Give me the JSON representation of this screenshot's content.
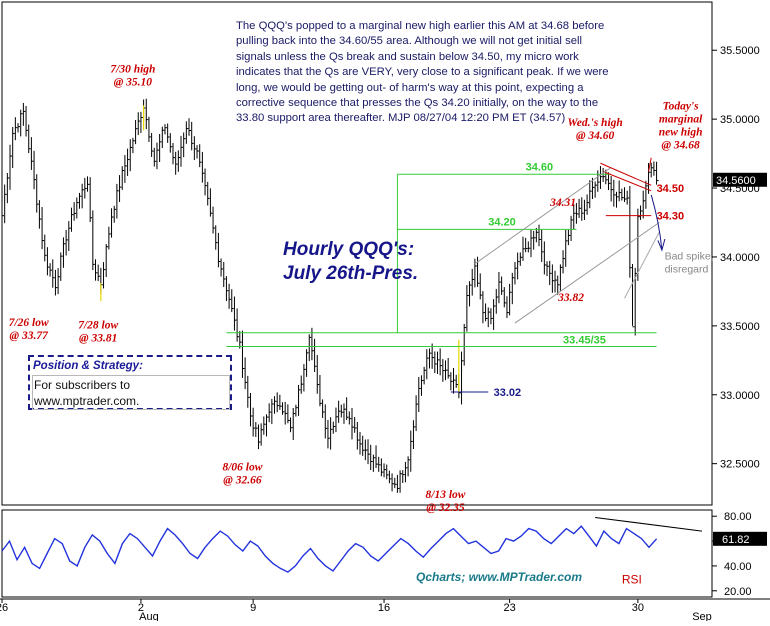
{
  "commentary": "The QQQ's popped to a marginal new high earlier this AM at 34.68 before pulling back into the 34.60/55 area. Although we will not get initial sell signals unless the Qs break and sustain below 34.50, my micro work indicates that the Qs are VERY, very close to a significant peak. If we were long, we would be getting out- of harm's way at this point, expecting a corrective sequence that presses the Qs 34.20 initially, on the way to the 33.80 support area thereafter. MJP 08/27/04  12:20 PM ET (34.57)",
  "title_line1": "Hourly QQQ's:",
  "title_line2": "July 26th-Pres.",
  "strategy": {
    "heading": "Position & Strategy:",
    "line1": "For subscribers to",
    "line2": "www.mptrader.com."
  },
  "credit": "Qcharts; www.MPTrader.com",
  "colors": {
    "bars": "#000000",
    "annotation_red": "#cc0000",
    "level_green": "#33cc33",
    "navy": "#1a1a88",
    "rsi_line": "#2233dd",
    "current_price_box": "#000000",
    "channel_gray": "#999999"
  },
  "chart_data": {
    "type": "bar",
    "price_panel": {
      "ylim": [
        32.2,
        35.85
      ],
      "y_ticks": [
        32.5,
        33.0,
        33.5,
        34.0,
        34.5,
        35.0,
        35.5
      ],
      "y_tick_labels": [
        "32.5000",
        "33.0000",
        "33.5000",
        "34.0000",
        "34.5000",
        "35.0000",
        "35.5000"
      ],
      "current_price": 34.56,
      "current_price_label": "34.5600",
      "anchors": [
        [
          0,
          34.3
        ],
        [
          4,
          34.9
        ],
        [
          8,
          35.05
        ],
        [
          12,
          34.55
        ],
        [
          16,
          34.0
        ],
        [
          20,
          33.8
        ],
        [
          24,
          34.15
        ],
        [
          28,
          34.4
        ],
        [
          32,
          34.55
        ],
        [
          34,
          33.95
        ],
        [
          37,
          33.81
        ],
        [
          41,
          34.3
        ],
        [
          45,
          34.6
        ],
        [
          49,
          34.85
        ],
        [
          53,
          35.1
        ],
        [
          57,
          34.7
        ],
        [
          61,
          34.95
        ],
        [
          65,
          34.65
        ],
        [
          69,
          34.95
        ],
        [
          73,
          34.75
        ],
        [
          77,
          34.4
        ],
        [
          81,
          34.0
        ],
        [
          85,
          33.7
        ],
        [
          89,
          33.35
        ],
        [
          93,
          32.85
        ],
        [
          96,
          32.66
        ],
        [
          100,
          32.9
        ],
        [
          104,
          32.95
        ],
        [
          108,
          32.75
        ],
        [
          112,
          33.1
        ],
        [
          115,
          33.45
        ],
        [
          118,
          33.05
        ],
        [
          122,
          32.7
        ],
        [
          126,
          32.9
        ],
        [
          130,
          32.85
        ],
        [
          134,
          32.65
        ],
        [
          138,
          32.55
        ],
        [
          142,
          32.45
        ],
        [
          145,
          32.38
        ],
        [
          148,
          32.35
        ],
        [
          152,
          32.55
        ],
        [
          156,
          33.05
        ],
        [
          160,
          33.3
        ],
        [
          164,
          33.2
        ],
        [
          168,
          33.1
        ],
        [
          171,
          33.02
        ],
        [
          174,
          33.7
        ],
        [
          177,
          33.9
        ],
        [
          180,
          33.6
        ],
        [
          183,
          33.55
        ],
        [
          186,
          33.8
        ],
        [
          189,
          33.6
        ],
        [
          192,
          33.95
        ],
        [
          196,
          34.05
        ],
        [
          200,
          34.2
        ],
        [
          204,
          33.9
        ],
        [
          208,
          33.82
        ],
        [
          211,
          34.1
        ],
        [
          214,
          34.31
        ],
        [
          218,
          34.35
        ],
        [
          222,
          34.55
        ],
        [
          225,
          34.6
        ],
        [
          228,
          34.5
        ],
        [
          231,
          34.45
        ],
        [
          234,
          34.4
        ],
        [
          236,
          33.5
        ],
        [
          238,
          34.3
        ],
        [
          241,
          34.5
        ],
        [
          243,
          34.68
        ],
        [
          245,
          34.57
        ]
      ]
    },
    "rsi_panel": {
      "series": "RSI",
      "ylim": [
        15,
        85
      ],
      "y_ticks": [
        20.0,
        40.0,
        60.0,
        80.0
      ],
      "y_tick_labels": [
        "20.00",
        "40.00",
        "60.00",
        "80.00"
      ],
      "current_value": 61.82,
      "current_value_label": "61.82",
      "label": "RSI",
      "values": [
        52,
        60,
        45,
        55,
        42,
        38,
        50,
        62,
        58,
        44,
        40,
        55,
        65,
        60,
        50,
        42,
        58,
        66,
        62,
        55,
        48,
        60,
        70,
        65,
        58,
        50,
        46,
        55,
        62,
        68,
        64,
        57,
        52,
        60,
        56,
        48,
        42,
        38,
        35,
        40,
        48,
        54,
        46,
        40,
        36,
        44,
        52,
        58,
        55,
        48,
        44,
        50,
        56,
        62,
        58,
        52,
        47,
        54,
        60,
        66,
        70,
        64,
        58,
        60,
        55,
        50,
        52,
        62,
        60,
        64,
        70,
        68,
        62,
        58,
        64,
        70,
        66,
        72,
        64,
        56,
        68,
        62,
        58,
        70,
        66,
        62,
        55,
        61.82
      ]
    },
    "x_tick_labels": [
      {
        "index": 0,
        "label": "26"
      },
      {
        "index": 52,
        "label": "2"
      },
      {
        "index": 94,
        "label": "9"
      },
      {
        "index": 143,
        "label": "16"
      },
      {
        "index": 190,
        "label": "23"
      },
      {
        "index": 238,
        "label": "30"
      }
    ],
    "x_month_labels": [
      {
        "index": 52,
        "label": "Aug"
      },
      {
        "index": 262,
        "label": "Sep"
      }
    ],
    "x_max_index": 265,
    "levels": [
      {
        "name": "33.45/35",
        "value": 33.45,
        "value2": 33.35,
        "label": "33.45/35",
        "x_start": 84,
        "x_end": 245
      },
      {
        "name": "34.20",
        "value": 34.2,
        "label": "34.20",
        "x_start": 148,
        "x_end": 215
      },
      {
        "name": "34.60",
        "value": 34.6,
        "label": "34.60",
        "x_start": 148,
        "x_end": 228
      },
      {
        "name": "33.02",
        "value": 33.02,
        "label": "33.02",
        "x_start": 168,
        "x_end": 182
      },
      {
        "name": "34.50",
        "value": 34.5,
        "label": "34.50",
        "x_start": 225,
        "x_end": 243
      },
      {
        "name": "34.30",
        "value": 34.3,
        "label": "34.30",
        "x_start": 226,
        "x_end": 243
      }
    ],
    "annotations": [
      {
        "line1": "7/26  low",
        "line2": "@ 33.77",
        "x": 10,
        "y": 33.5
      },
      {
        "line1": "7/28 low",
        "line2": "@ 33.81",
        "x": 36,
        "y": 33.48
      },
      {
        "line1": "7/30 high",
        "line2": "@ 35.10",
        "x": 49,
        "y": 35.34
      },
      {
        "line1": "8/06 low",
        "line2": "@ 32.66",
        "x": 90,
        "y": 32.45
      },
      {
        "line1": "8/13 low",
        "line2": "@ 32.35",
        "x": 166,
        "y": 32.25
      },
      {
        "line1": "Wed.'s high",
        "line2": "@ 34.60",
        "x": 222,
        "y": 34.95
      },
      {
        "line1": "Today's",
        "line2": "marginal",
        "line3": "new high",
        "line4": "@ 34.68",
        "x": 254,
        "y": 35.07
      },
      {
        "line1": "33.82",
        "x": 213,
        "y": 33.68
      },
      {
        "line1": "34.31",
        "x": 210,
        "y": 34.37
      }
    ],
    "bad_spike_note": {
      "line1": "Bad spike,",
      "line2": "disregard"
    }
  }
}
